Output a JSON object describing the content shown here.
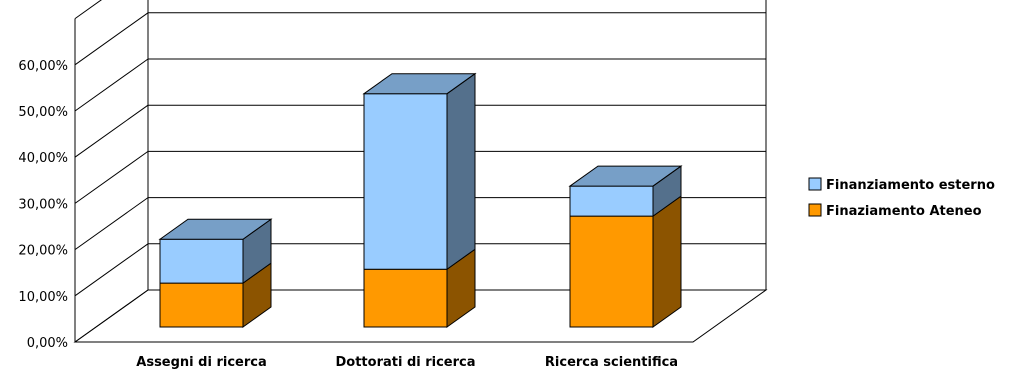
{
  "chart_data": {
    "type": "bar",
    "stacked": true,
    "three_d": true,
    "categories": [
      "Assegni di ricerca",
      "Dottorati di ricerca",
      "Ricerca scientifica"
    ],
    "series": [
      {
        "name": "Finaziamento Ateneo",
        "values": [
          9.5,
          12.5,
          24.0
        ],
        "color": "#FF9900"
      },
      {
        "name": "Finanziamento esterno",
        "values": [
          9.5,
          38.0,
          6.5
        ],
        "color": "#99CCFF"
      }
    ],
    "ylim": [
      0,
      60
    ],
    "yticks": [
      "0,00%",
      "10,00%",
      "20,00%",
      "30,00%",
      "40,00%",
      "50,00%",
      "60,00%"
    ],
    "legend_position": "right",
    "grid": true
  }
}
